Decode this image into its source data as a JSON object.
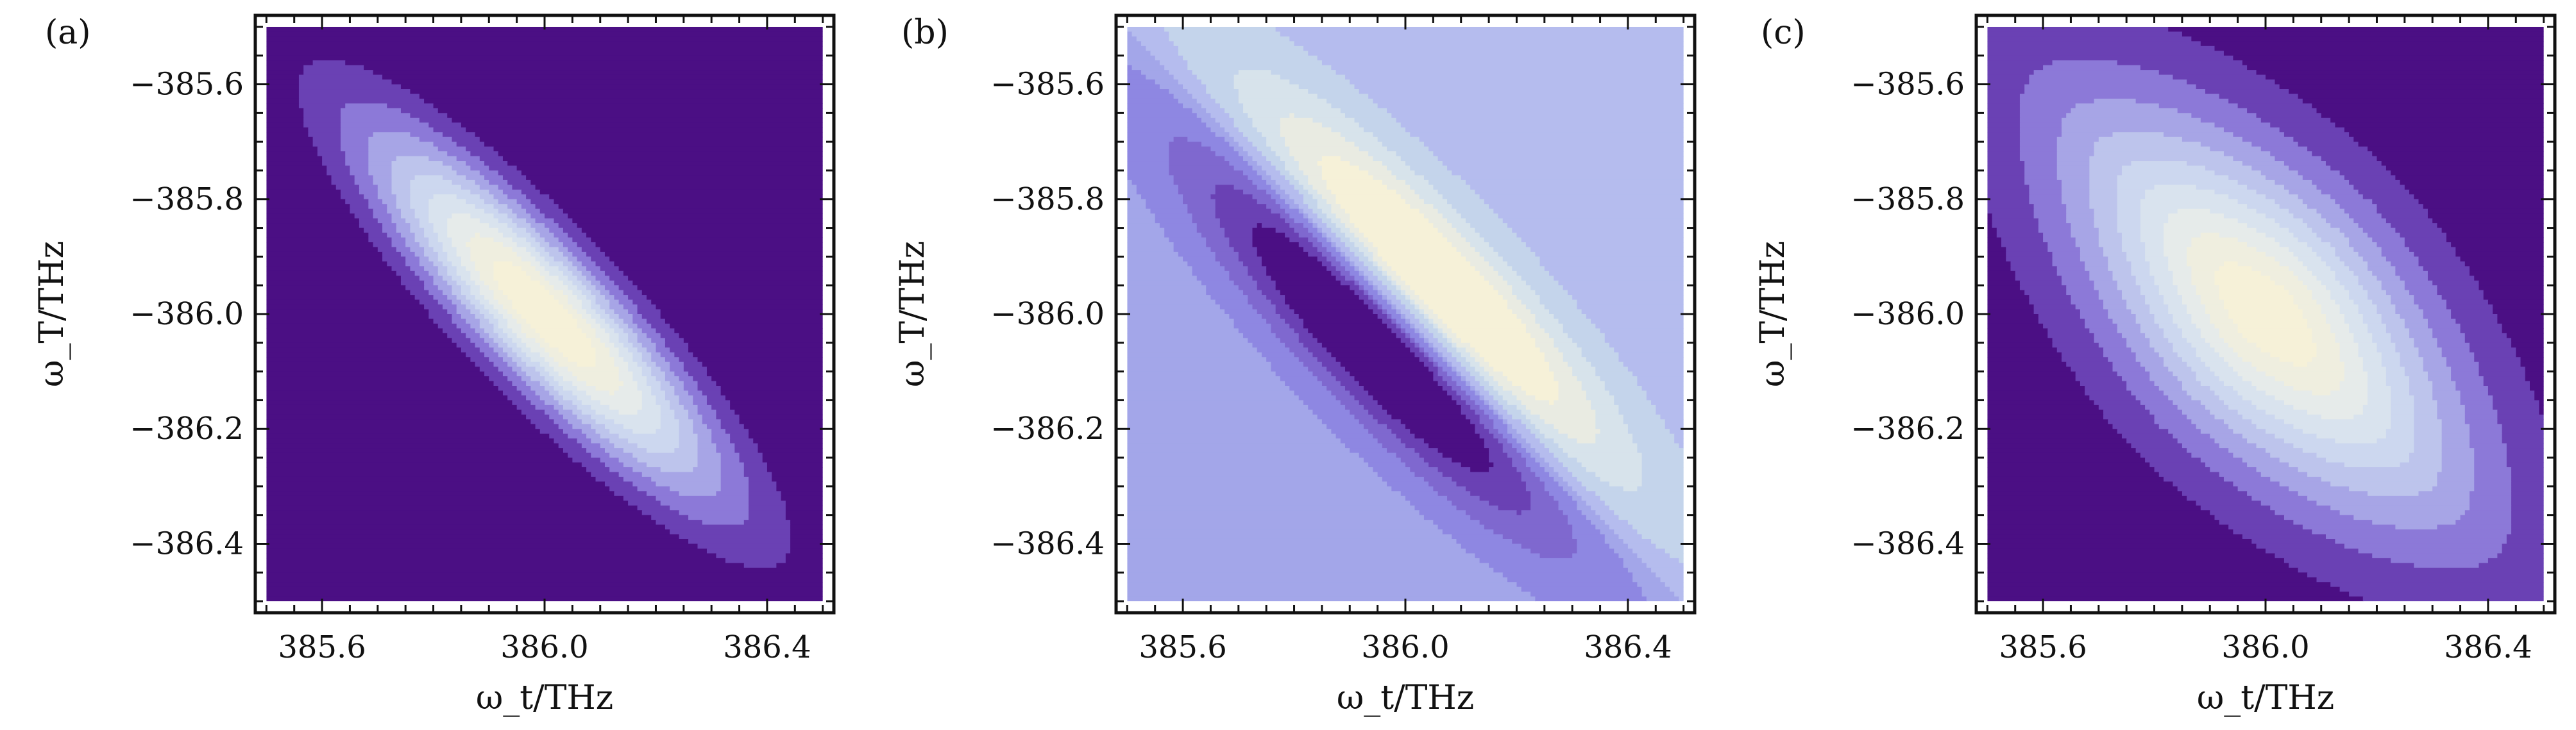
{
  "chart_data": [
    {
      "type": "heatmap",
      "panel_label": "(a)",
      "xlabel": "ω_t/THz",
      "ylabel": "ω_T/THz",
      "xlim": [
        385.48,
        386.52
      ],
      "ylim": [
        -386.52,
        -385.48
      ],
      "xticks": [
        385.6,
        386.0,
        386.4
      ],
      "xtick_labels": [
        "385.6",
        "386.0",
        "386.4"
      ],
      "yticks": [
        -385.6,
        -385.8,
        -386.0,
        -386.2,
        -386.4
      ],
      "ytick_labels": [
        "−385.6",
        "−385.8",
        "−386.0",
        "−386.2",
        "−386.4"
      ],
      "data_extent": {
        "x": [
          385.5,
          386.5
        ],
        "y": [
          -386.5,
          -385.5
        ]
      },
      "center": {
        "x": 386.0,
        "y": -386.0
      },
      "pattern": "anti-correlated elongated peak along x + y = 0 diagonal",
      "levels": [
        0.0,
        0.1,
        0.2,
        0.3,
        0.4,
        0.5,
        0.6,
        0.7,
        0.8,
        0.9
      ],
      "colors": [
        "#4b0f84",
        "#6a41b4",
        "#8c79d8",
        "#a7a5e6",
        "#bdc4ec",
        "#ccd7ef",
        "#d9e3ee",
        "#e6ebea",
        "#efeedf",
        "#f6f1d8"
      ]
    },
    {
      "type": "heatmap",
      "panel_label": "(b)",
      "xlabel": "ω_t/THz",
      "ylabel": "ω_T/THz",
      "xlim": [
        385.48,
        386.52
      ],
      "ylim": [
        -386.52,
        -385.48
      ],
      "xticks": [
        385.6,
        386.0,
        386.4
      ],
      "xtick_labels": [
        "385.6",
        "386.0",
        "386.4"
      ],
      "yticks": [
        -385.6,
        -385.8,
        -386.0,
        -386.2,
        -386.4
      ],
      "ytick_labels": [
        "−385.6",
        "−385.8",
        "−386.0",
        "−386.2",
        "−386.4"
      ],
      "data_extent": {
        "x": [
          385.5,
          386.5
        ],
        "y": [
          -386.5,
          -385.5
        ]
      },
      "center": {
        "x": 386.0,
        "y": -386.0
      },
      "pattern": "antisymmetric lobes across the x + y = 0 diagonal: maximum upper-right, minimum lower-left",
      "levels": [
        -1.0,
        -0.8,
        -0.6,
        -0.4,
        -0.2,
        0.0,
        0.2,
        0.4,
        0.6,
        0.8
      ],
      "colors": [
        "#4b0f84",
        "#6a41b4",
        "#7f68cf",
        "#8e87e2",
        "#a3a6e9",
        "#b5bcee",
        "#c4d4eb",
        "#d7e3eb",
        "#e9ebe2",
        "#f6f1d8"
      ]
    },
    {
      "type": "heatmap",
      "panel_label": "(c)",
      "xlabel": "ω_t/THz",
      "ylabel": "ω_T/THz",
      "xlim": [
        385.48,
        386.52
      ],
      "ylim": [
        -386.52,
        -385.48
      ],
      "xticks": [
        385.6,
        386.0,
        386.4
      ],
      "xtick_labels": [
        "385.6",
        "386.0",
        "386.4"
      ],
      "yticks": [
        -385.6,
        -385.8,
        -386.0,
        -386.2,
        -386.4
      ],
      "ytick_labels": [
        "−385.6",
        "−385.8",
        "−386.0",
        "−386.2",
        "−386.4"
      ],
      "data_extent": {
        "x": [
          385.5,
          386.5
        ],
        "y": [
          -386.5,
          -385.5
        ]
      },
      "center": {
        "x": 386.0,
        "y": -386.0
      },
      "pattern": "broad anti-correlated peak along x + y = 0 diagonal",
      "levels": [
        0.0,
        0.1,
        0.2,
        0.3,
        0.4,
        0.5,
        0.6,
        0.7,
        0.8,
        0.9
      ],
      "colors": [
        "#4b0f84",
        "#6a41b4",
        "#8c79d8",
        "#a7a5e6",
        "#bdc4ec",
        "#ccd7ef",
        "#d9e3ee",
        "#e6ebea",
        "#efeedf",
        "#f6f1d8"
      ]
    }
  ]
}
